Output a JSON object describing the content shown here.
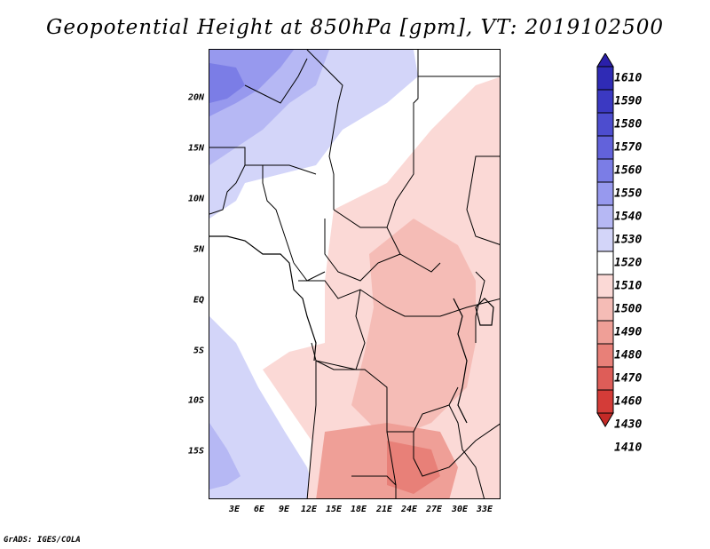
{
  "title": "Geopotential Height at 850hPa [gpm], VT: 2019102500",
  "credit": "GrADS: IGES/COLA",
  "map": {
    "lat_labels": [
      "20N",
      "15N",
      "10N",
      "5N",
      "EQ",
      "5S",
      "10S",
      "15S"
    ],
    "lon_labels": [
      "3E",
      "6E",
      "9E",
      "12E",
      "15E",
      "18E",
      "21E",
      "24E",
      "27E",
      "30E",
      "33E"
    ],
    "lon_range": [
      0,
      35
    ],
    "lat_range": [
      -20,
      25
    ]
  },
  "colorbar": {
    "levels": [
      "1610",
      "1590",
      "1580",
      "1570",
      "1560",
      "1550",
      "1540",
      "1530",
      "1520",
      "1510",
      "1500",
      "1490",
      "1480",
      "1470",
      "1460",
      "1430",
      "1410"
    ],
    "colors": [
      "#2a1faa",
      "#2f2bb5",
      "#3b39c2",
      "#4d4dcf",
      "#6262db",
      "#7b7de6",
      "#9799ee",
      "#b6b8f4",
      "#d3d5f9",
      "#ffffff",
      "#fbd9d6",
      "#f5bcb6",
      "#ef9f97",
      "#e88078",
      "#de5d58",
      "#d43c38",
      "#c42a27"
    ]
  }
}
